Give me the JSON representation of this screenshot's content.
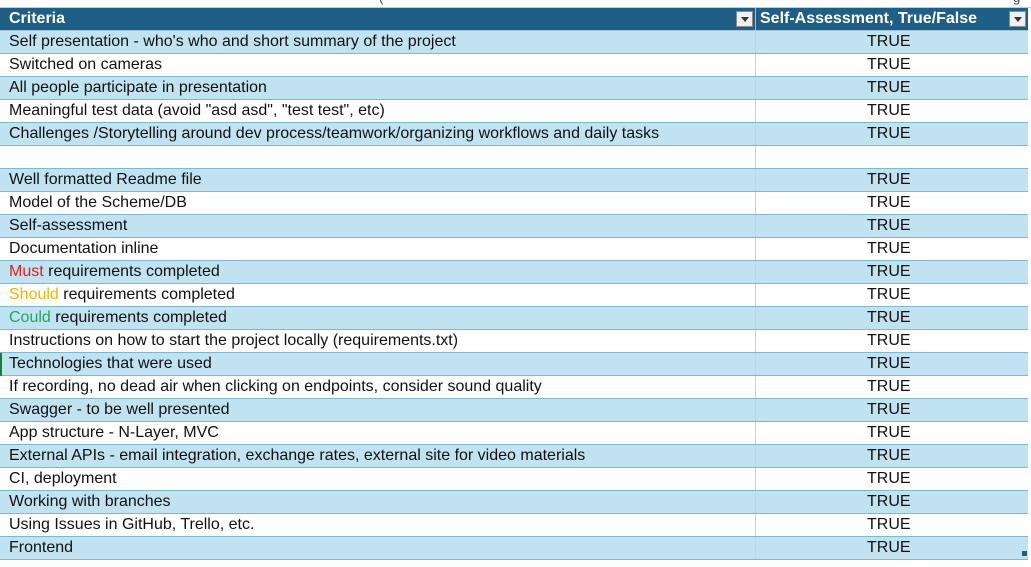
{
  "header": {
    "col1": "Criteria",
    "col2": "Self-Assessment, True/False"
  },
  "rows": [
    {
      "pre": "",
      "kw": "",
      "kw_color": "",
      "text": "Self presentation - who's who and short summary of the project",
      "val": "TRUE"
    },
    {
      "pre": "",
      "kw": "",
      "kw_color": "",
      "text": "Switched on cameras",
      "val": "TRUE"
    },
    {
      "pre": "",
      "kw": "",
      "kw_color": "",
      "text": "All people participate in presentation",
      "val": "TRUE"
    },
    {
      "pre": "",
      "kw": "",
      "kw_color": "",
      "text": "Meaningful test data (avoid \"asd asd\", \"test test\", etc)",
      "val": "TRUE"
    },
    {
      "pre": "",
      "kw": "",
      "kw_color": "",
      "text": "Challenges /Storytelling around dev process/teamwork/organizing workflows and daily tasks",
      "val": "TRUE"
    },
    {
      "pre": "",
      "kw": "",
      "kw_color": "",
      "text": "",
      "val": ""
    },
    {
      "pre": "",
      "kw": "",
      "kw_color": "",
      "text": "Well formatted Readme file",
      "val": "TRUE"
    },
    {
      "pre": "",
      "kw": "",
      "kw_color": "",
      "text": "Model of the Scheme/DB",
      "val": "TRUE"
    },
    {
      "pre": "",
      "kw": "",
      "kw_color": "",
      "text": "Self-assessment",
      "val": "TRUE"
    },
    {
      "pre": "",
      "kw": "",
      "kw_color": "",
      "text": "Documentation inline",
      "val": "TRUE"
    },
    {
      "pre": "",
      "kw": "Must",
      "kw_color": "#e0201b",
      "text": " requirements completed",
      "val": "TRUE"
    },
    {
      "pre": "",
      "kw": "Should",
      "kw_color": "#f3b400",
      "text": " requirements completed",
      "val": "TRUE"
    },
    {
      "pre": "",
      "kw": "Could",
      "kw_color": "#1fa85a",
      "text": " requirements completed",
      "val": "TRUE"
    },
    {
      "pre": "",
      "kw": "",
      "kw_color": "",
      "text": "Instructions on how to start the project locally (requirements.txt)",
      "val": "TRUE"
    },
    {
      "pre": "",
      "kw": "",
      "kw_color": "",
      "text": "Technologies that were used",
      "val": "TRUE"
    },
    {
      "pre": "",
      "kw": "",
      "kw_color": "",
      "text": "If recording, no dead air when clicking on endpoints, consider sound quality",
      "val": "TRUE"
    },
    {
      "pre": "",
      "kw": "",
      "kw_color": "",
      "text": "Swagger - to be well presented",
      "val": "TRUE"
    },
    {
      "pre": "",
      "kw": "",
      "kw_color": "",
      "text": "App structure - N-Layer, MVC",
      "val": "TRUE"
    },
    {
      "pre": "",
      "kw": "",
      "kw_color": "",
      "text": "External APIs - email integration, exchange rates, external site for video materials",
      "val": "TRUE"
    },
    {
      "pre": "",
      "kw": "",
      "kw_color": "",
      "text": "CI, deployment",
      "val": "TRUE"
    },
    {
      "pre": "",
      "kw": "",
      "kw_color": "",
      "text": "Working with branches",
      "val": "TRUE"
    },
    {
      "pre": "",
      "kw": "",
      "kw_color": "",
      "text": "Using Issues in GitHub, Trello, etc.",
      "val": "TRUE"
    },
    {
      "pre": "",
      "kw": "",
      "kw_color": "",
      "text": "Frontend",
      "val": "TRUE"
    }
  ],
  "colors": {
    "header_bg": "#1f5f86",
    "band_odd": "#c1e2f1",
    "band_even": "#ffffff"
  },
  "icons": [
    "dropdown-arrow-icon",
    "table-resize-handle-icon"
  ]
}
